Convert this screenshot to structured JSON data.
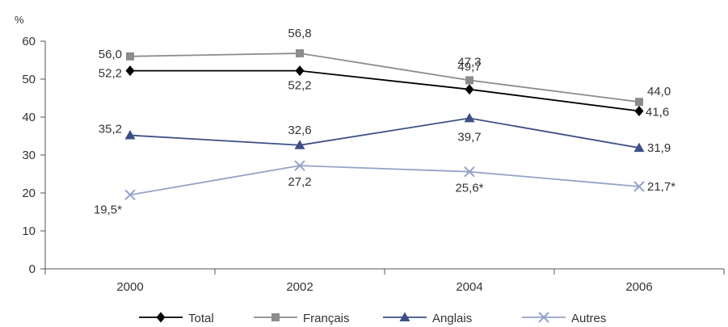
{
  "chart_data": {
    "type": "line",
    "unit_label": "%",
    "categories": [
      "2000",
      "2002",
      "2004",
      "2006"
    ],
    "ylim": [
      0,
      60
    ],
    "yticks": [
      "0",
      "10",
      "20",
      "30",
      "40",
      "50",
      "60"
    ],
    "grid": false,
    "legend_position": "bottom",
    "series": [
      {
        "name": "Total",
        "marker": "diamond",
        "color": "#000000",
        "values": [
          52.2,
          52.2,
          47.3,
          41.6
        ],
        "labels": [
          "52,2",
          "52,2",
          "47,3",
          "41,6"
        ]
      },
      {
        "name": "Français",
        "marker": "square",
        "color": "#8c8c8c",
        "values": [
          56.0,
          56.8,
          49.7,
          44.0
        ],
        "labels": [
          "56,0",
          "56,8",
          "49,7",
          "44,0"
        ]
      },
      {
        "name": "Anglais",
        "marker": "triangle",
        "color": "#3d4f85",
        "values": [
          35.2,
          32.6,
          39.7,
          31.9
        ],
        "labels": [
          "35,2",
          "32,6",
          "39,7",
          "31,9"
        ]
      },
      {
        "name": "Autres",
        "marker": "x",
        "color": "#95a3c8",
        "values": [
          19.5,
          27.2,
          25.6,
          21.7
        ],
        "labels": [
          "19,5*",
          "27,2",
          "25,6*",
          "21,7*"
        ]
      }
    ]
  }
}
